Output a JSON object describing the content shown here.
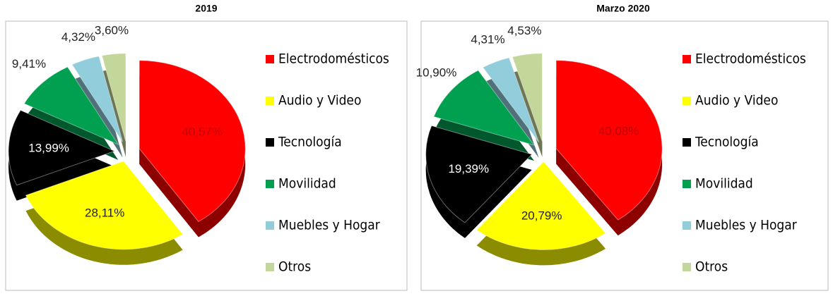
{
  "chart_data": [
    {
      "type": "pie",
      "title": "2019",
      "categories": [
        "Electrodomésticos",
        "Audio y Video",
        "Tecnología",
        "Movilidad",
        "Muebles y Hogar",
        "Otros"
      ],
      "values": [
        40.57,
        28.11,
        13.99,
        9.41,
        4.32,
        3.6
      ],
      "value_labels": [
        "40,57%",
        "28,11%",
        "13,99%",
        "9,41%",
        "4,32%",
        "3,60%"
      ],
      "colors": [
        "#ff0000",
        "#ffff00",
        "#000000",
        "#00a050",
        "#92cddc",
        "#c4d79b"
      ]
    },
    {
      "type": "pie",
      "title": "Marzo 2020",
      "categories": [
        "Electrodomésticos",
        "Audio y Video",
        "Tecnología",
        "Movilidad",
        "Muebles y Hogar",
        "Otros"
      ],
      "values": [
        40.08,
        20.79,
        19.39,
        10.9,
        4.31,
        4.53
      ],
      "value_labels": [
        "40,08%",
        "20,79%",
        "19,39%",
        "10,90%",
        "4,31%",
        "4,53%"
      ],
      "colors": [
        "#ff0000",
        "#ffff00",
        "#000000",
        "#00a050",
        "#92cddc",
        "#c4d79b"
      ]
    }
  ]
}
